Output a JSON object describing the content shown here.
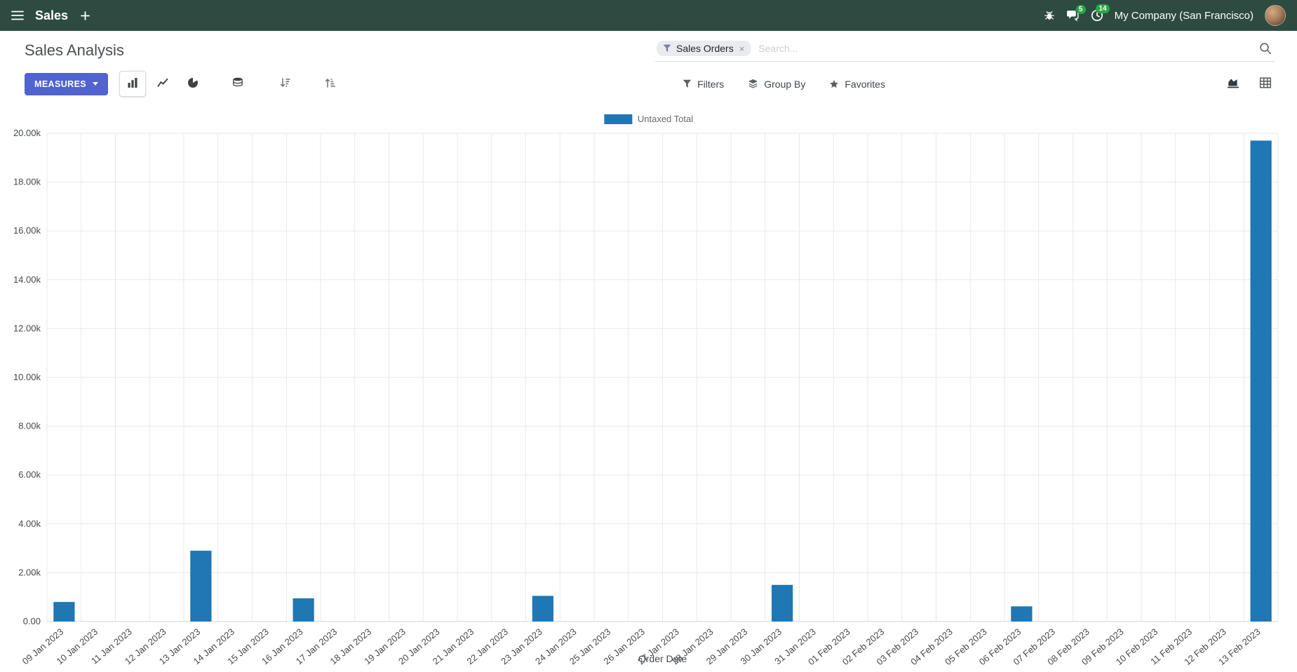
{
  "navbar": {
    "app_name": "Sales",
    "messages_badge": "5",
    "activities_badge": "14",
    "company_name": "My Company (San Francisco)"
  },
  "control_panel": {
    "title": "Sales Analysis",
    "measures_button": "MEASURES",
    "filters_label": "Filters",
    "group_by_label": "Group By",
    "favorites_label": "Favorites",
    "search": {
      "facet": "Sales Orders",
      "facet_remove": "×",
      "placeholder": "Search..."
    }
  },
  "icons": {
    "app_menu": "hamburger",
    "new_tab": "plus",
    "debug": "bug",
    "messages": "speech-bubbles",
    "activities": "clock",
    "search": "magnifier",
    "facet_filter": "funnel",
    "filters": "funnel",
    "group_by": "layers",
    "favorites": "star",
    "bar_chart": "bars",
    "line_chart": "line",
    "pie_chart": "pie",
    "stacked": "database",
    "sort_desc": "sort-amount-desc",
    "sort_asc": "sort-amount-asc",
    "graph_view": "area-chart",
    "pivot_view": "grid",
    "measures_caret": "caret-down"
  },
  "colors": {
    "navbar_bg": "#2d4b41",
    "badge_green": "#28a745",
    "primary_button": "#5163cf",
    "facet_icon": "#7c7bad"
  },
  "chart_data": {
    "type": "bar",
    "legend": "Untaxed Total",
    "legend_position": "top-center",
    "series_color": "#1f77b4",
    "xlabel": "Order Date",
    "ylabel": "",
    "ylim": [
      0,
      20000
    ],
    "ytick_step": 2000,
    "grid": true,
    "categories": [
      "09 Jan 2023",
      "10 Jan 2023",
      "11 Jan 2023",
      "12 Jan 2023",
      "13 Jan 2023",
      "14 Jan 2023",
      "15 Jan 2023",
      "16 Jan 2023",
      "17 Jan 2023",
      "18 Jan 2023",
      "19 Jan 2023",
      "20 Jan 2023",
      "21 Jan 2023",
      "22 Jan 2023",
      "23 Jan 2023",
      "24 Jan 2023",
      "25 Jan 2023",
      "26 Jan 2023",
      "27 Jan 2023",
      "28 Jan 2023",
      "29 Jan 2023",
      "30 Jan 2023",
      "31 Jan 2023",
      "01 Feb 2023",
      "02 Feb 2023",
      "03 Feb 2023",
      "04 Feb 2023",
      "05 Feb 2023",
      "06 Feb 2023",
      "07 Feb 2023",
      "08 Feb 2023",
      "09 Feb 2023",
      "10 Feb 2023",
      "11 Feb 2023",
      "12 Feb 2023",
      "13 Feb 2023"
    ],
    "values": [
      800,
      0,
      0,
      0,
      2900,
      0,
      0,
      950,
      0,
      0,
      0,
      0,
      0,
      0,
      1050,
      0,
      0,
      0,
      0,
      0,
      0,
      1500,
      0,
      0,
      0,
      0,
      0,
      0,
      620,
      0,
      0,
      0,
      0,
      0,
      0,
      19700
    ]
  }
}
